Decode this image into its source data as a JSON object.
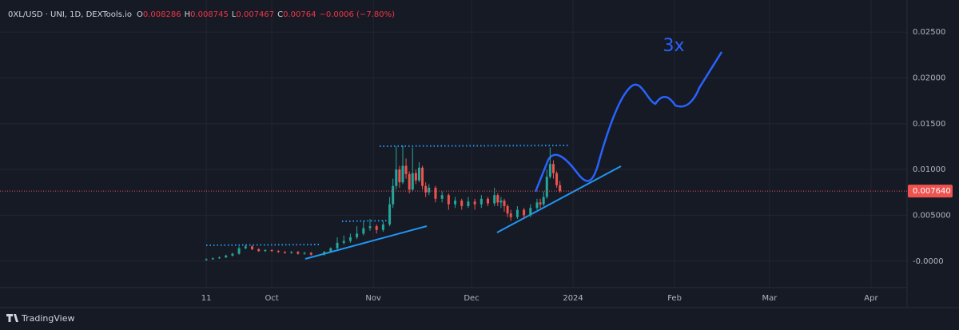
{
  "chart_data": {
    "type": "candlestick",
    "header": {
      "symbol": "0XL/USD · UNI, 1D, DEXTools.io",
      "ohlc_labels": [
        "O",
        "H",
        "L",
        "C"
      ],
      "ohlc": [
        0.008286,
        0.008745,
        0.007467,
        0.00764
      ],
      "change": "−0.0006 (−7.80%)"
    },
    "annotation": "3x",
    "branding": "TradingView",
    "up_color": "#26a69a",
    "down_color": "#ef5350",
    "x": [
      0,
      2,
      4,
      6,
      8,
      10,
      12,
      14,
      16,
      18,
      20,
      22,
      24,
      26,
      28,
      30,
      32,
      36,
      38,
      40,
      42,
      44,
      46,
      48,
      50,
      52,
      54,
      56,
      57,
      58,
      59,
      60,
      61,
      62,
      63,
      64,
      65,
      66,
      67,
      68,
      70,
      72,
      74,
      76,
      78,
      80,
      82,
      84,
      86,
      88,
      89,
      90,
      91,
      92,
      93,
      95,
      97,
      99,
      101,
      102,
      103,
      104,
      105,
      106,
      107,
      108
    ],
    "open": [
      0.0001,
      0.0002,
      0.0003,
      0.0004,
      0.0006,
      0.0008,
      0.0014,
      0.0016,
      0.0013,
      0.0011,
      0.0012,
      0.0011,
      0.001,
      0.0009,
      0.001,
      0.0008,
      0.0009,
      0.0007,
      0.001,
      0.0014,
      0.002,
      0.0022,
      0.0026,
      0.003,
      0.0036,
      0.0038,
      0.0034,
      0.004,
      0.0062,
      0.0082,
      0.01,
      0.0086,
      0.0104,
      0.0095,
      0.0078,
      0.0096,
      0.0088,
      0.0102,
      0.0082,
      0.0075,
      0.008,
      0.0068,
      0.0072,
      0.0062,
      0.0066,
      0.006,
      0.0065,
      0.0062,
      0.0068,
      0.0063,
      0.0072,
      0.0064,
      0.0066,
      0.006,
      0.0052,
      0.0048,
      0.0056,
      0.005,
      0.0058,
      0.0064,
      0.0062,
      0.007,
      0.0092,
      0.0106,
      0.0096,
      0.008286
    ],
    "high": [
      0.0003,
      0.0004,
      0.0005,
      0.0007,
      0.0009,
      0.0016,
      0.0018,
      0.0017,
      0.0014,
      0.0013,
      0.0013,
      0.0012,
      0.0011,
      0.0011,
      0.0011,
      0.001,
      0.001,
      0.0011,
      0.0015,
      0.0026,
      0.0028,
      0.003,
      0.0038,
      0.0044,
      0.0046,
      0.004,
      0.0044,
      0.007,
      0.009,
      0.0125,
      0.0104,
      0.0126,
      0.0112,
      0.0098,
      0.0124,
      0.01,
      0.0108,
      0.0104,
      0.0086,
      0.0084,
      0.0082,
      0.0076,
      0.0074,
      0.007,
      0.0068,
      0.007,
      0.0068,
      0.0072,
      0.007,
      0.008,
      0.0074,
      0.007,
      0.0068,
      0.0062,
      0.0056,
      0.006,
      0.0058,
      0.0062,
      0.0068,
      0.0068,
      0.0076,
      0.01,
      0.0124,
      0.011,
      0.0098,
      0.008745
    ],
    "low": [
      5e-05,
      0.00015,
      0.00025,
      0.00035,
      0.0005,
      0.0007,
      0.0013,
      0.0012,
      0.001,
      0.001,
      0.001,
      0.0009,
      0.0008,
      0.0008,
      0.0007,
      0.0007,
      0.0006,
      0.0006,
      0.0009,
      0.0013,
      0.0018,
      0.002,
      0.0024,
      0.0028,
      0.0033,
      0.003,
      0.0032,
      0.0038,
      0.0058,
      0.0078,
      0.008,
      0.0084,
      0.009,
      0.0074,
      0.0076,
      0.0084,
      0.0086,
      0.0078,
      0.007,
      0.0072,
      0.0064,
      0.0064,
      0.0056,
      0.0058,
      0.0056,
      0.0058,
      0.0056,
      0.0058,
      0.006,
      0.006,
      0.006,
      0.0058,
      0.0054,
      0.0048,
      0.0044,
      0.0046,
      0.0046,
      0.0048,
      0.0056,
      0.0058,
      0.006,
      0.0068,
      0.009,
      0.009,
      0.008,
      0.007467
    ],
    "close": [
      0.0002,
      0.0003,
      0.0004,
      0.0006,
      0.0008,
      0.0014,
      0.0016,
      0.0013,
      0.0011,
      0.0012,
      0.0011,
      0.001,
      0.0009,
      0.001,
      0.0008,
      0.0009,
      0.0007,
      0.001,
      0.0014,
      0.002,
      0.0022,
      0.0026,
      0.003,
      0.0036,
      0.0038,
      0.0034,
      0.004,
      0.0062,
      0.0082,
      0.01,
      0.0086,
      0.0104,
      0.0095,
      0.0078,
      0.0096,
      0.0088,
      0.0102,
      0.0082,
      0.0075,
      0.008,
      0.0068,
      0.0072,
      0.0062,
      0.0066,
      0.006,
      0.0065,
      0.0062,
      0.0068,
      0.0063,
      0.0072,
      0.0064,
      0.0066,
      0.006,
      0.0052,
      0.0048,
      0.0056,
      0.005,
      0.0058,
      0.0064,
      0.0062,
      0.007,
      0.0092,
      0.0106,
      0.0096,
      0.008286,
      0.00764
    ],
    "xlim": [
      -63,
      214
    ],
    "ylim": [
      -0.0029,
      0.0285
    ],
    "xticks": [
      {
        "value": 0,
        "label": "11"
      },
      {
        "value": 20,
        "label": "Oct"
      },
      {
        "value": 51,
        "label": "Nov"
      },
      {
        "value": 81,
        "label": "Dec"
      },
      {
        "value": 112,
        "label": "2024"
      },
      {
        "value": 143,
        "label": "Feb"
      },
      {
        "value": 172,
        "label": "Mar"
      },
      {
        "value": 203,
        "label": "Apr"
      }
    ],
    "yticks": [
      {
        "value": 0,
        "label": "-0.0000"
      },
      {
        "value": 0.005,
        "label": "0.005000"
      },
      {
        "value": 0.01,
        "label": "0.01000"
      },
      {
        "value": 0.015,
        "label": "0.01500"
      },
      {
        "value": 0.02,
        "label": "0.02000"
      },
      {
        "value": 0.025,
        "label": "0.02500"
      }
    ],
    "last_price": {
      "value": 0.00764,
      "label": "0.007640"
    },
    "grid": true
  }
}
